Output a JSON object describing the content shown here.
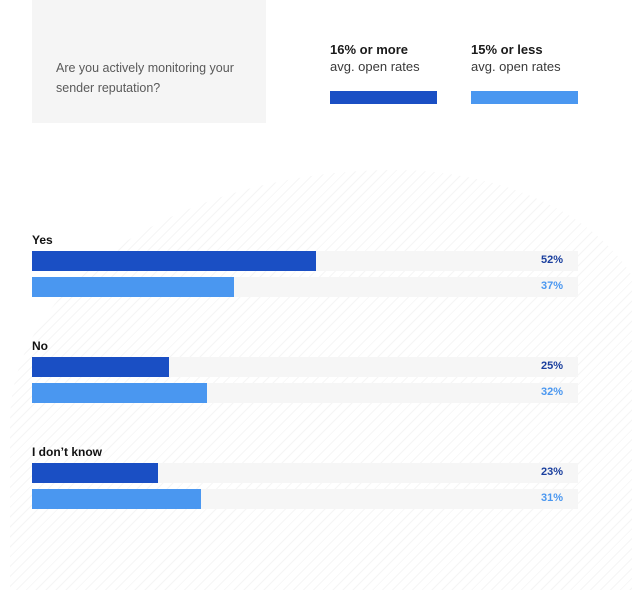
{
  "question": "Are you actively monitoring your sender reputation?",
  "legend": [
    {
      "title": "16% or more",
      "subtitle": "avg. open rates",
      "color": "#1a4fc4"
    },
    {
      "title": "15% or less",
      "subtitle": "avg. open rates",
      "color": "#4a97f0"
    }
  ],
  "chart_data": {
    "type": "bar",
    "orientation": "horizontal",
    "categories": [
      "Yes",
      "No",
      "I don’t know"
    ],
    "series": [
      {
        "name": "16% or more avg. open rates",
        "values": [
          52,
          25,
          23
        ],
        "labels": [
          "52%",
          "25%",
          "23%"
        ],
        "color": "#1a4fc4"
      },
      {
        "name": "15% or less avg. open rates",
        "values": [
          37,
          32,
          31
        ],
        "labels": [
          "37%",
          "32%",
          "31%"
        ],
        "color": "#4a97f0"
      }
    ],
    "xlim": [
      0,
      100
    ],
    "grid": false,
    "legend_position": "top-right"
  }
}
